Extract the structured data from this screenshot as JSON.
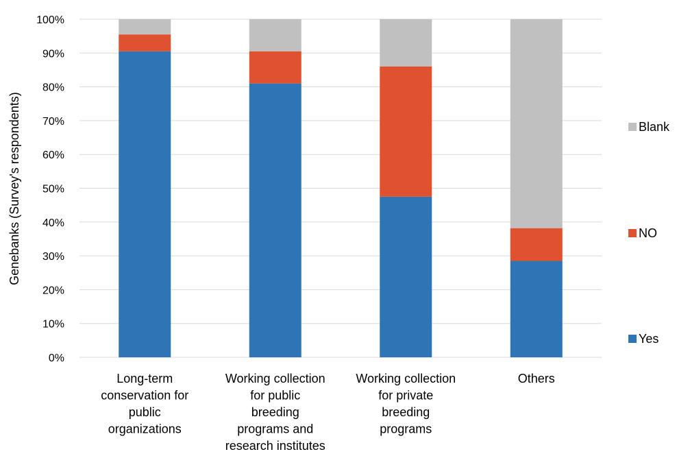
{
  "chart_data": {
    "type": "bar",
    "stacked": "percent",
    "categories": [
      "Long-term conservation for public organizations",
      "Working collection for public breeding programs and research institutes",
      "Working collection for private breeding programs",
      "Others"
    ],
    "category_lines": [
      [
        "Long-term",
        "conservation for",
        "public",
        "organizations"
      ],
      [
        "Working collection",
        "for public",
        "breeding",
        "programs and",
        "research institutes"
      ],
      [
        "Working collection",
        "for private",
        "breeding",
        "programs"
      ],
      [
        "Others"
      ]
    ],
    "series": [
      {
        "name": "Yes",
        "color": "#2E75B6",
        "values": [
          90.5,
          81.0,
          47.5,
          28.5
        ]
      },
      {
        "name": "NO",
        "color": "#E0512F",
        "values": [
          5.0,
          9.5,
          38.5,
          9.7
        ]
      },
      {
        "name": "Blank",
        "color": "#C0C0C0",
        "values": [
          4.5,
          9.5,
          14.0,
          61.8
        ]
      }
    ],
    "ylabel": "Genebanks (Survey's respondents)",
    "xlabel": "",
    "ylim": [
      0,
      100
    ],
    "yticks": [
      "0%",
      "10%",
      "20%",
      "30%",
      "40%",
      "50%",
      "60%",
      "70%",
      "80%",
      "90%",
      "100%"
    ],
    "grid": true,
    "legend_position": "right"
  }
}
